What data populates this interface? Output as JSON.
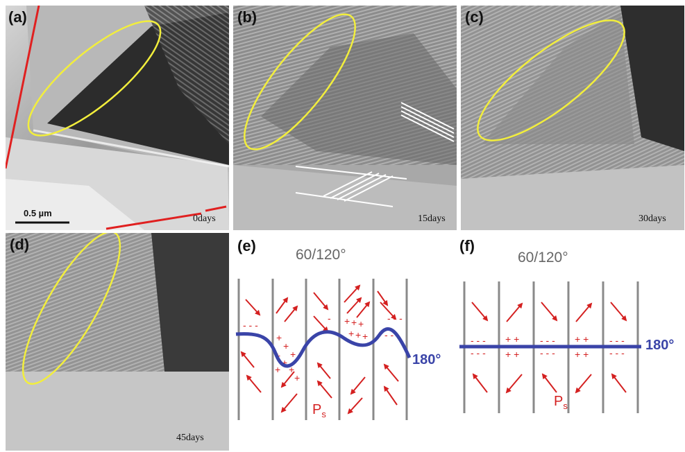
{
  "panels": {
    "a": {
      "label": "(a)",
      "days": "0days",
      "scalebar": "0.5 µm"
    },
    "b": {
      "label": "(b)",
      "days": "15days"
    },
    "c": {
      "label": "(c)",
      "days": "30days"
    },
    "d": {
      "label": "(d)",
      "days": "45days"
    },
    "e": {
      "label": "(e)",
      "angle": "60/120°",
      "wall": "180°",
      "ps_main": "P",
      "ps_sub": "s"
    },
    "f": {
      "label": "(f)",
      "angle": "60/120°",
      "wall": "180°",
      "ps_main": "P",
      "ps_sub": "s"
    }
  },
  "colors": {
    "ellipse": "#f2ee3c",
    "red_line": "#e02020",
    "domain_wall": "#3a44a8",
    "arrow": "#d42020",
    "column_line": "#8a8a8a"
  }
}
